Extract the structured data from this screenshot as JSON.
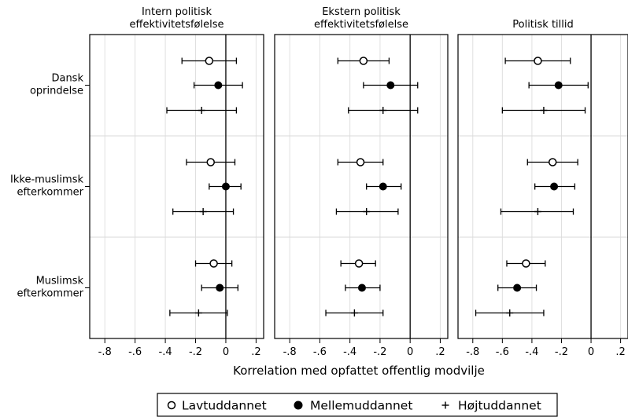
{
  "chart_data": {
    "type": "scatter",
    "xlabel": "Korrelation med opfattet offentlig modvilje",
    "xlim": [
      -0.9,
      0.25
    ],
    "xticks": [
      -0.8,
      -0.6,
      -0.4,
      -0.2,
      0,
      0.2
    ],
    "xtick_labels": [
      "-.8",
      "-.6",
      "-.4",
      "-.2",
      "0",
      ".2"
    ],
    "grid": true,
    "legend_position": "bottom",
    "groups": [
      {
        "id": "dansk",
        "label_lines": [
          "Dansk",
          "oprindelse"
        ]
      },
      {
        "id": "ikke",
        "label_lines": [
          "Ikke-muslimsk",
          "efterkommer"
        ]
      },
      {
        "id": "muslimsk",
        "label_lines": [
          "Muslimsk",
          "efterkommer"
        ]
      }
    ],
    "series": [
      {
        "name": "Lavtuddannet",
        "marker": "hollow-circle"
      },
      {
        "name": "Mellemuddannet",
        "marker": "filled-circle"
      },
      {
        "name": "Højtuddannet",
        "marker": "plus"
      }
    ],
    "panels": [
      {
        "title_lines": [
          "Intern politisk",
          "effektivitetsfølelse"
        ],
        "estimates": [
          [
            {
              "point": -0.11,
              "ci": [
                -0.29,
                0.07
              ]
            },
            {
              "point": -0.05,
              "ci": [
                -0.21,
                0.11
              ]
            },
            {
              "point": -0.16,
              "ci": [
                -0.39,
                0.07
              ]
            }
          ],
          [
            {
              "point": -0.1,
              "ci": [
                -0.26,
                0.06
              ]
            },
            {
              "point": 0.0,
              "ci": [
                -0.11,
                0.1
              ]
            },
            {
              "point": -0.15,
              "ci": [
                -0.35,
                0.05
              ]
            }
          ],
          [
            {
              "point": -0.08,
              "ci": [
                -0.2,
                0.04
              ]
            },
            {
              "point": -0.04,
              "ci": [
                -0.16,
                0.08
              ]
            },
            {
              "point": -0.18,
              "ci": [
                -0.37,
                0.01
              ]
            }
          ]
        ]
      },
      {
        "title_lines": [
          "Ekstern politisk",
          "effektivitetsfølelse"
        ],
        "estimates": [
          [
            {
              "point": -0.31,
              "ci": [
                -0.48,
                -0.14
              ]
            },
            {
              "point": -0.13,
              "ci": [
                -0.31,
                0.05
              ]
            },
            {
              "point": -0.18,
              "ci": [
                -0.41,
                0.05
              ]
            }
          ],
          [
            {
              "point": -0.33,
              "ci": [
                -0.48,
                -0.18
              ]
            },
            {
              "point": -0.18,
              "ci": [
                -0.29,
                -0.06
              ]
            },
            {
              "point": -0.29,
              "ci": [
                -0.49,
                -0.08
              ]
            }
          ],
          [
            {
              "point": -0.34,
              "ci": [
                -0.46,
                -0.23
              ]
            },
            {
              "point": -0.32,
              "ci": [
                -0.43,
                -0.2
              ]
            },
            {
              "point": -0.37,
              "ci": [
                -0.56,
                -0.18
              ]
            }
          ]
        ]
      },
      {
        "title_lines": [
          "Politisk tillid"
        ],
        "estimates": [
          [
            {
              "point": -0.36,
              "ci": [
                -0.58,
                -0.14
              ]
            },
            {
              "point": -0.22,
              "ci": [
                -0.42,
                -0.02
              ]
            },
            {
              "point": -0.32,
              "ci": [
                -0.6,
                -0.04
              ]
            }
          ],
          [
            {
              "point": -0.26,
              "ci": [
                -0.43,
                -0.09
              ]
            },
            {
              "point": -0.25,
              "ci": [
                -0.38,
                -0.11
              ]
            },
            {
              "point": -0.36,
              "ci": [
                -0.61,
                -0.12
              ]
            }
          ],
          [
            {
              "point": -0.44,
              "ci": [
                -0.57,
                -0.31
              ]
            },
            {
              "point": -0.5,
              "ci": [
                -0.63,
                -0.37
              ]
            },
            {
              "point": -0.55,
              "ci": [
                -0.78,
                -0.32
              ]
            }
          ]
        ]
      }
    ]
  }
}
